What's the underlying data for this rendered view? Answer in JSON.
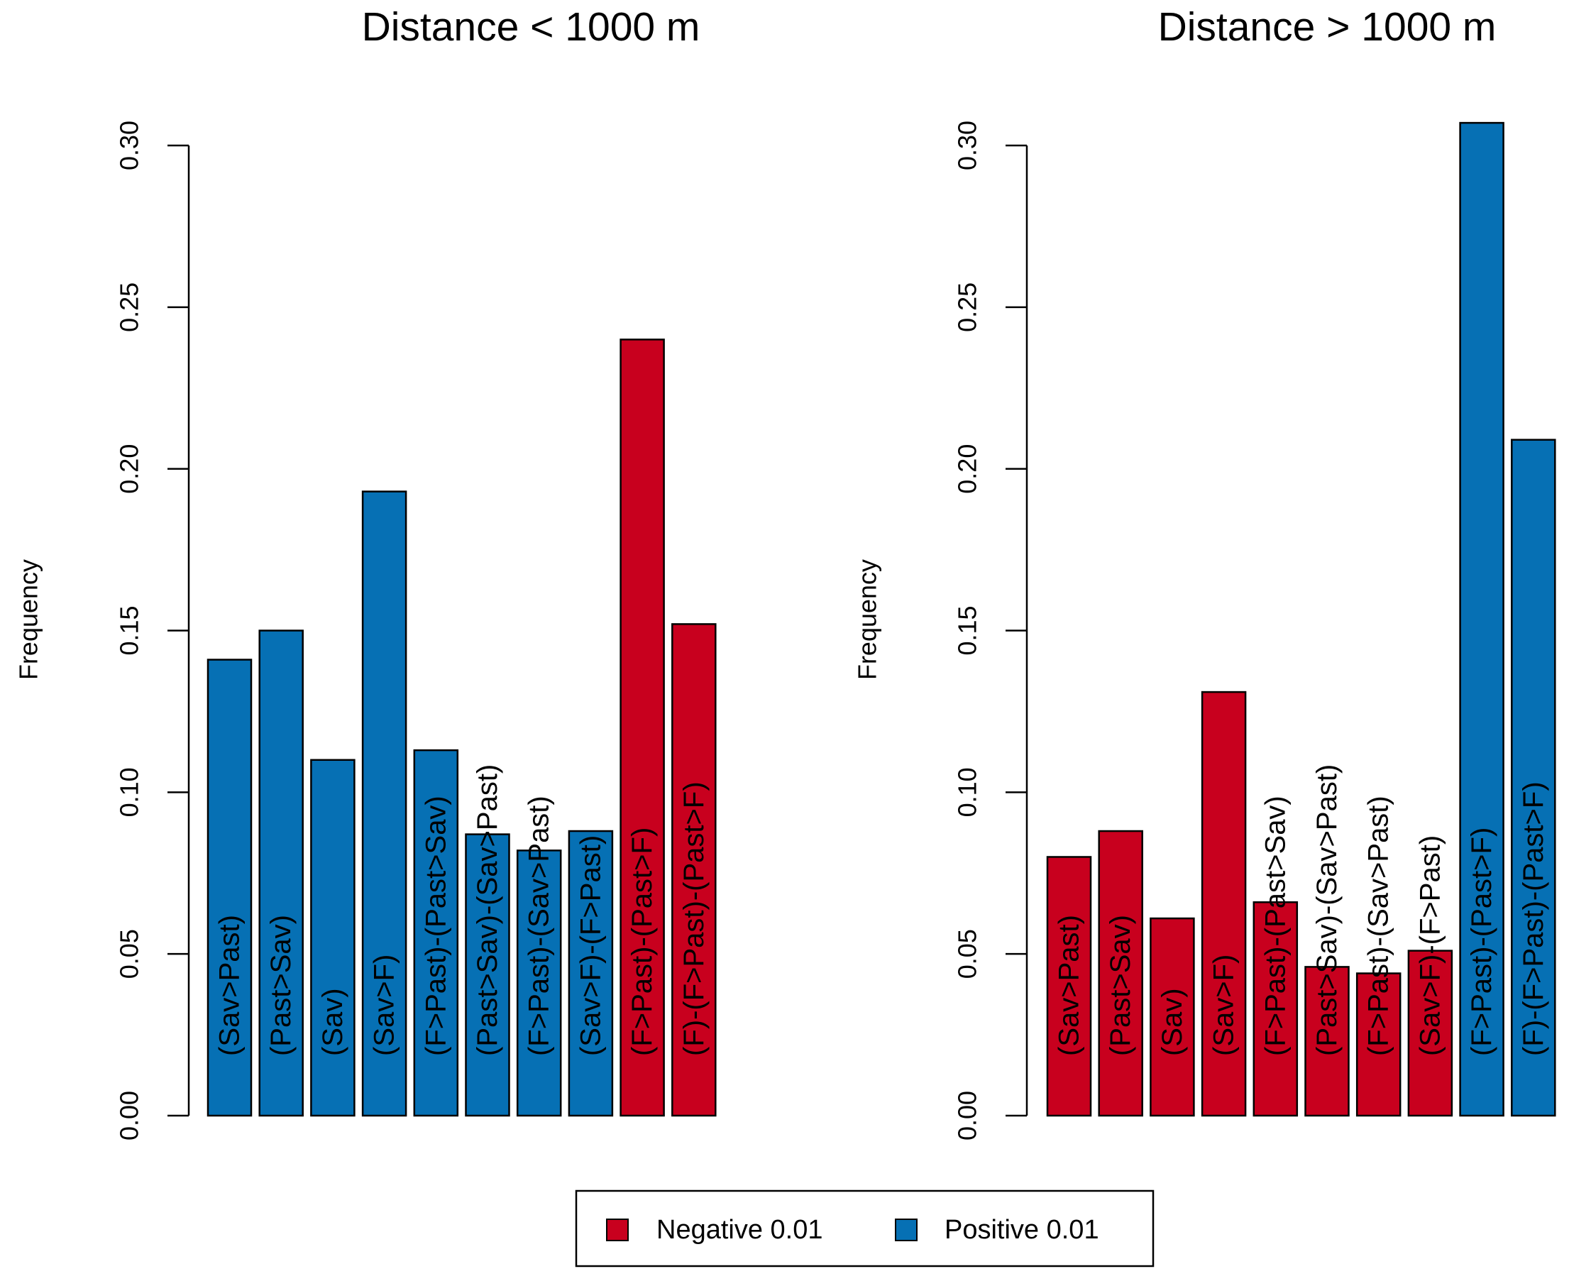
{
  "chart_data": [
    {
      "type": "bar",
      "title": "Distance < 1000 m",
      "ylabel": "Frequency",
      "xlabel": "",
      "ylim": [
        0,
        0.3
      ],
      "yticks": [
        "0.00",
        "0.05",
        "0.10",
        "0.15",
        "0.20",
        "0.25",
        "0.30"
      ],
      "categories": [
        "(Sav>Past)",
        "(Past>Sav)",
        "(Sav)",
        "(Sav>F)",
        "(F>Past)-(Past>Sav)",
        "(Past>Sav)-(Sav>Past)",
        "(F>Past)-(Sav>Past)",
        "(Sav>F)-(F>Past)",
        "(F>Past)-(Past>F)",
        "(F)-(F>Past)-(Past>F)"
      ],
      "values": [
        0.141,
        0.15,
        0.11,
        0.193,
        0.113,
        0.087,
        0.082,
        0.088,
        0.24,
        0.152
      ],
      "signs": [
        "Positive 0.01",
        "Positive 0.01",
        "Positive 0.01",
        "Positive 0.01",
        "Positive 0.01",
        "Positive 0.01",
        "Positive 0.01",
        "Positive 0.01",
        "Negative 0.01",
        "Negative 0.01"
      ]
    },
    {
      "type": "bar",
      "title": "Distance > 1000 m",
      "ylabel": "Frequency",
      "xlabel": "",
      "ylim": [
        0,
        0.3
      ],
      "yticks": [
        "0.00",
        "0.05",
        "0.10",
        "0.15",
        "0.20",
        "0.25",
        "0.30"
      ],
      "categories": [
        "(Sav>Past)",
        "(Past>Sav)",
        "(Sav)",
        "(Sav>F)",
        "(F>Past)-(Past>Sav)",
        "(Past>Sav)-(Sav>Past)",
        "(F>Past)-(Sav>Past)",
        "(Sav>F)-(F>Past)",
        "(F>Past)-(Past>F)",
        "(F)-(F>Past)-(Past>F)"
      ],
      "values": [
        0.08,
        0.088,
        0.061,
        0.131,
        0.066,
        0.046,
        0.044,
        0.051,
        0.307,
        0.209
      ],
      "signs": [
        "Negative 0.01",
        "Negative 0.01",
        "Negative 0.01",
        "Negative 0.01",
        "Negative 0.01",
        "Negative 0.01",
        "Negative 0.01",
        "Negative 0.01",
        "Positive 0.01",
        "Positive 0.01"
      ]
    }
  ],
  "legend": {
    "placement": "bottom-center",
    "items": [
      {
        "label": "Negative 0.01",
        "color": "#c8001e"
      },
      {
        "label": "Positive 0.01",
        "color": "#0670b4"
      }
    ]
  },
  "colors": {
    "Negative 0.01": "#c8001e",
    "Positive 0.01": "#0670b4"
  }
}
